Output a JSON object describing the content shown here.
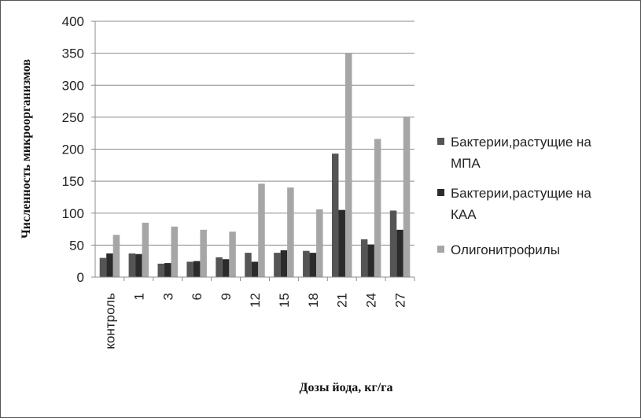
{
  "chart_data": {
    "type": "bar",
    "title": "",
    "xlabel": "Дозы йода, кг/га",
    "ylabel": "Численность микроорганизмов",
    "ylim": [
      0,
      400
    ],
    "yticks": [
      0,
      50,
      100,
      150,
      200,
      250,
      300,
      350,
      400
    ],
    "grid": true,
    "legend_position": "right",
    "categories": [
      "контроль",
      "1",
      "3",
      "6",
      "9",
      "12",
      "15",
      "18",
      "21",
      "24",
      "27"
    ],
    "series": [
      {
        "name": "Бактерии,растущие на МПА",
        "legend_lines": [
          "Бактерии,растущие на",
          "МПА"
        ],
        "color": "#555555",
        "values": [
          30,
          37,
          21,
          24,
          31,
          38,
          38,
          41,
          193,
          59,
          104
        ]
      },
      {
        "name": "Бактерии,растущие на КАА",
        "legend_lines": [
          "Бактерии,растущие на",
          "КАА"
        ],
        "color": "#2b2b2b",
        "values": [
          37,
          36,
          22,
          25,
          28,
          24,
          42,
          38,
          105,
          51,
          74
        ]
      },
      {
        "name": "Олигонитрофилы",
        "legend_lines": [
          "Олигонитрофилы"
        ],
        "color": "#a6a6a6",
        "values": [
          66,
          85,
          79,
          74,
          71,
          146,
          140,
          106,
          350,
          216,
          251
        ]
      }
    ]
  }
}
